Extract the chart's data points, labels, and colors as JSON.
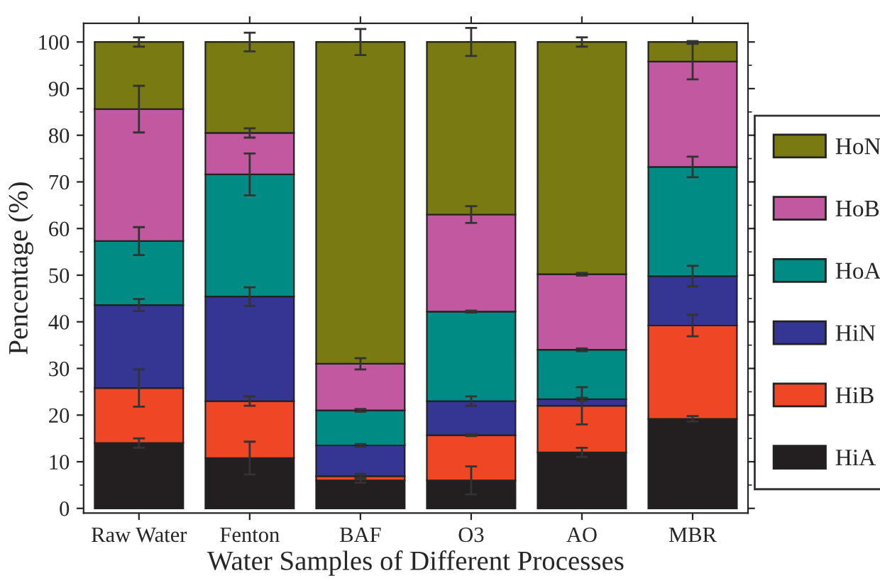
{
  "chart_data": {
    "type": "bar",
    "stacked": true,
    "xlabel": "Water Samples of Different Processes",
    "ylabel": "Pencentage (%)",
    "categories": [
      "Raw Water",
      "Fenton",
      "BAF",
      "O3",
      "AO",
      "MBR"
    ],
    "series": [
      {
        "name": "HiA",
        "color": "#231f20",
        "values": [
          14,
          10.8,
          6,
          6,
          12,
          19.2
        ],
        "errors": [
          1,
          3.5,
          0.5,
          3,
          1,
          0.6
        ]
      },
      {
        "name": "HiB",
        "color": "#ef4626",
        "values": [
          11.8,
          12.2,
          0.9,
          9.7,
          10,
          20
        ],
        "errors": [
          4,
          1,
          0.5,
          0.2,
          4,
          2.3
        ]
      },
      {
        "name": "HiN",
        "color": "#353594",
        "values": [
          17.8,
          22.4,
          6.6,
          7.3,
          1.4,
          10.6
        ],
        "errors": [
          1.3,
          2,
          0.3,
          1,
          0.3,
          2.2
        ]
      },
      {
        "name": "HoA",
        "color": "#008c84",
        "values": [
          13.7,
          26.2,
          7.5,
          19.2,
          10.6,
          23.4
        ],
        "errors": [
          3,
          4.5,
          0.3,
          0.2,
          0.3,
          2.2
        ]
      },
      {
        "name": "HoB",
        "color": "#c259a0",
        "values": [
          28.3,
          8.9,
          10,
          20.8,
          16.2,
          22.6
        ],
        "errors": [
          5,
          1,
          1.2,
          1.8,
          0.3,
          3.8
        ]
      },
      {
        "name": "HoN",
        "color": "#7a7a12",
        "values": [
          14.4,
          19.5,
          69,
          37,
          49.8,
          4.2
        ],
        "errors": [
          1,
          2,
          2.8,
          3,
          1,
          0.2
        ]
      }
    ],
    "ylim": [
      -1,
      104
    ],
    "yticks": [
      0,
      10,
      20,
      30,
      40,
      50,
      60,
      70,
      80,
      90,
      100
    ],
    "grid": false,
    "legend": "right"
  }
}
